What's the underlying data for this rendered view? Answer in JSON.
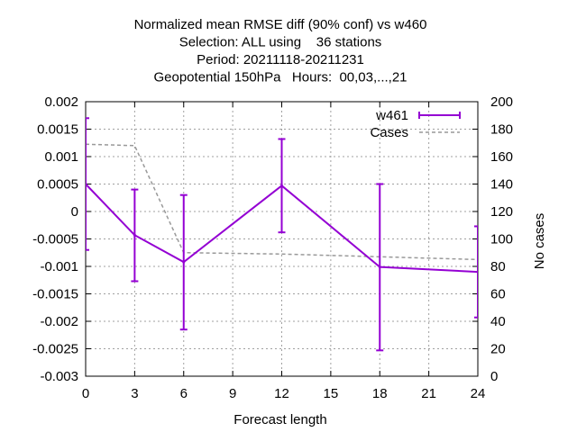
{
  "chart_data": {
    "type": "line",
    "title_lines": [
      "Normalized mean RMSE diff (90% conf) vs w460",
      "Selection: ALL using    36 stations",
      "Period: 20211118-20211231",
      "Geopotential 150hPa   Hours:  00,03,...,21"
    ],
    "xlabel": "Forecast length",
    "ylabel": "",
    "y2label": "No cases",
    "xlim": [
      0,
      24
    ],
    "ylim": [
      -0.003,
      0.002
    ],
    "y2lim": [
      0,
      200
    ],
    "xticks": [
      "0",
      "3",
      "6",
      "9",
      "12",
      "15",
      "18",
      "21",
      "24"
    ],
    "yticks": [
      "-0.003",
      "-0.0025",
      "-0.002",
      "-0.0015",
      "-0.001",
      "-0.0005",
      "0",
      "0.0005",
      "0.001",
      "0.0015",
      "0.002"
    ],
    "y2ticks": [
      "0",
      "20",
      "40",
      "60",
      "80",
      "100",
      "120",
      "140",
      "160",
      "180",
      "200"
    ],
    "grid": true,
    "legend_position": "top-right",
    "series": [
      {
        "name": "w461",
        "color": "#9400d3",
        "style": "line-errorbars",
        "x": [
          0,
          3,
          6,
          12,
          18,
          24
        ],
        "y": [
          0.0005,
          -0.00043,
          -0.00092,
          0.00047,
          -0.00101,
          -0.0011
        ],
        "err_low": [
          -0.0007,
          -0.00127,
          -0.00215,
          -0.00038,
          -0.00253,
          -0.00193
        ],
        "err_high": [
          0.0017,
          0.0004,
          0.0003,
          0.00132,
          0.0005,
          -0.00027
        ]
      },
      {
        "name": "Cases",
        "color": "#999999",
        "style": "dashed",
        "axis": "y2",
        "x": [
          0,
          3,
          6,
          12,
          18,
          24
        ],
        "y": [
          169,
          168,
          90,
          89,
          87,
          85
        ]
      }
    ]
  }
}
